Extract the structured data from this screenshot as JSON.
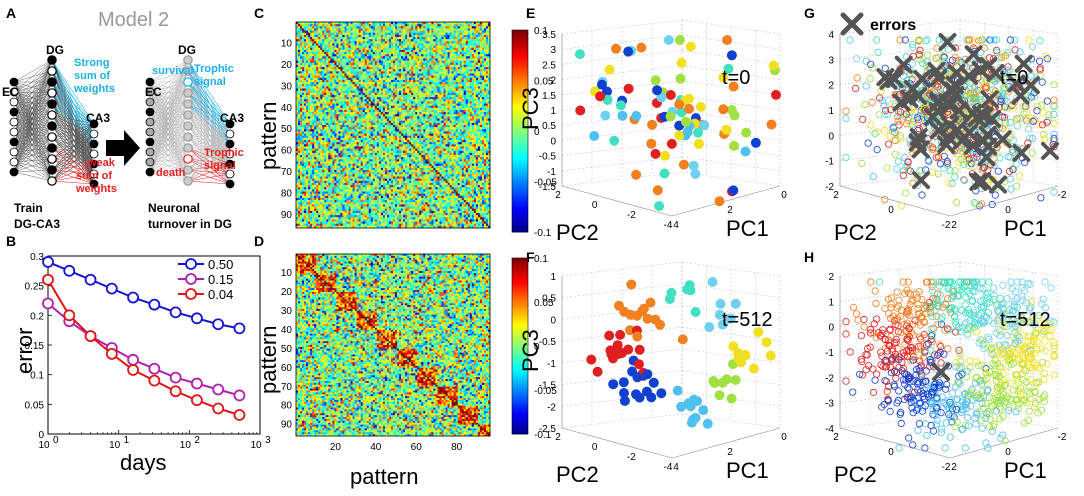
{
  "panel_labels": [
    "A",
    "B",
    "C",
    "D",
    "E",
    "F",
    "G",
    "H"
  ],
  "panel_a": {
    "title": "Model 2",
    "left": {
      "ec": "EC",
      "dg": "DG",
      "ca3": "CA3",
      "strong": [
        "Strong",
        "sum of",
        "weights"
      ],
      "weak": [
        "weak",
        "sum of",
        "weights"
      ],
      "caption": [
        "Train",
        "DG-CA3"
      ]
    },
    "right": {
      "ec": "EC",
      "dg": "DG",
      "ca3": "CA3",
      "survival": "survival",
      "death": "death",
      "trophic_top": [
        "Trophic",
        "signal"
      ],
      "trophic_bottom": [
        "Trophic",
        "signal"
      ],
      "caption": [
        "Neuronal",
        "turnover in DG"
      ]
    }
  },
  "chart_data": [
    {
      "type": "line",
      "panel": "B",
      "xscale": "log",
      "xlabel": "days",
      "ylabel": "error",
      "xlim": [
        1,
        1000
      ],
      "ylim": [
        0,
        0.3
      ],
      "x_ticks": [
        "10",
        "10",
        "10",
        "10"
      ],
      "x_tick_exp": [
        "0",
        "1",
        "2",
        "3"
      ],
      "y_ticks": [
        "0",
        "0.05",
        "0.1",
        "0.15",
        "0.2",
        "0.25",
        "0.3"
      ],
      "legend_position": "top-right",
      "x": [
        1,
        2,
        4,
        8,
        16,
        32,
        64,
        128,
        256,
        512
      ],
      "series": [
        {
          "name": "0.50",
          "color": "#1515d4",
          "values": [
            0.29,
            0.275,
            0.26,
            0.245,
            0.23,
            0.218,
            0.205,
            0.195,
            0.185,
            0.178
          ]
        },
        {
          "name": "0.15",
          "color": "#b020b0",
          "values": [
            0.22,
            0.19,
            0.165,
            0.145,
            0.125,
            0.11,
            0.095,
            0.085,
            0.075,
            0.065
          ]
        },
        {
          "name": "0.04",
          "color": "#e01515",
          "values": [
            0.26,
            0.2,
            0.165,
            0.135,
            0.108,
            0.09,
            0.072,
            0.057,
            0.043,
            0.032
          ]
        }
      ]
    },
    {
      "type": "heatmap",
      "panel": "C",
      "xlabel": "",
      "ylabel": "pattern",
      "x_ticks": [],
      "y_ticks": [
        "10",
        "20",
        "30",
        "40",
        "50",
        "60",
        "70",
        "80",
        "90"
      ],
      "size": 96,
      "clim": [
        -0.1,
        0.1
      ],
      "block_structure": false,
      "colorbar_ticks": [
        "0.1",
        "0.05",
        "0",
        "-0.05",
        "-0.1"
      ]
    },
    {
      "type": "heatmap",
      "panel": "D",
      "xlabel": "pattern",
      "ylabel": "pattern",
      "x_ticks": [
        "20",
        "40",
        "60",
        "80"
      ],
      "y_ticks": [
        "10",
        "20",
        "30",
        "40",
        "50",
        "60",
        "70",
        "80",
        "90"
      ],
      "size": 96,
      "clim": [
        -0.1,
        0.1
      ],
      "block_structure": true,
      "block_size": 10,
      "colorbar_ticks": [
        "0.1",
        "0.05",
        "0",
        "-0.05",
        "-0.1"
      ]
    },
    {
      "type": "scatter",
      "panel": "E",
      "label": "t=0",
      "xlabel": "PC1",
      "ylabel": "PC2",
      "zlabel": "PC3",
      "z_ticks": [
        "3.5",
        "3",
        "2.5",
        "2",
        "1.5",
        "1",
        "0.5",
        "0",
        "-0.5",
        "-1",
        "-1.5"
      ],
      "pc2_ticks": [
        "2",
        "0",
        "-2",
        "-4"
      ],
      "pc1_ticks": [
        "4",
        "2",
        "0"
      ],
      "clustered": false,
      "n_points": 90
    },
    {
      "type": "scatter",
      "panel": "F",
      "label": "t=512",
      "xlabel": "PC1",
      "ylabel": "PC2",
      "zlabel": "PC3",
      "z_ticks": [
        "1",
        "0.5",
        "0",
        "-0.5",
        "-1",
        "-1.5",
        "-2",
        "-2.5"
      ],
      "pc2_ticks": [
        "2",
        "0",
        "-2",
        "-4"
      ],
      "pc1_ticks": [
        "4",
        "2",
        "0"
      ],
      "clustered": true,
      "n_points": 90
    },
    {
      "type": "scatter",
      "panel": "G",
      "label": "t=0",
      "legend": "errors",
      "xlabel": "PC1",
      "ylabel": "PC2",
      "z_ticks": [
        "4",
        "3",
        "2",
        "1",
        "0",
        "-1",
        "-2"
      ],
      "pc2_ticks": [
        "2",
        "0",
        "-2"
      ],
      "pc1_ticks": [
        "2",
        "0",
        "-2"
      ],
      "clustered": false,
      "n_points": 900,
      "n_errors": 60
    },
    {
      "type": "scatter",
      "panel": "H",
      "label": "t=512",
      "xlabel": "PC1",
      "ylabel": "PC2",
      "z_ticks": [
        "2",
        "1",
        "0",
        "-1",
        "-2",
        "-3",
        "-4"
      ],
      "pc2_ticks": [
        "2",
        "0",
        "-2"
      ],
      "pc1_ticks": [
        "2",
        "0",
        "-2"
      ],
      "clustered": true,
      "n_points": 900,
      "n_errors": 1
    }
  ]
}
